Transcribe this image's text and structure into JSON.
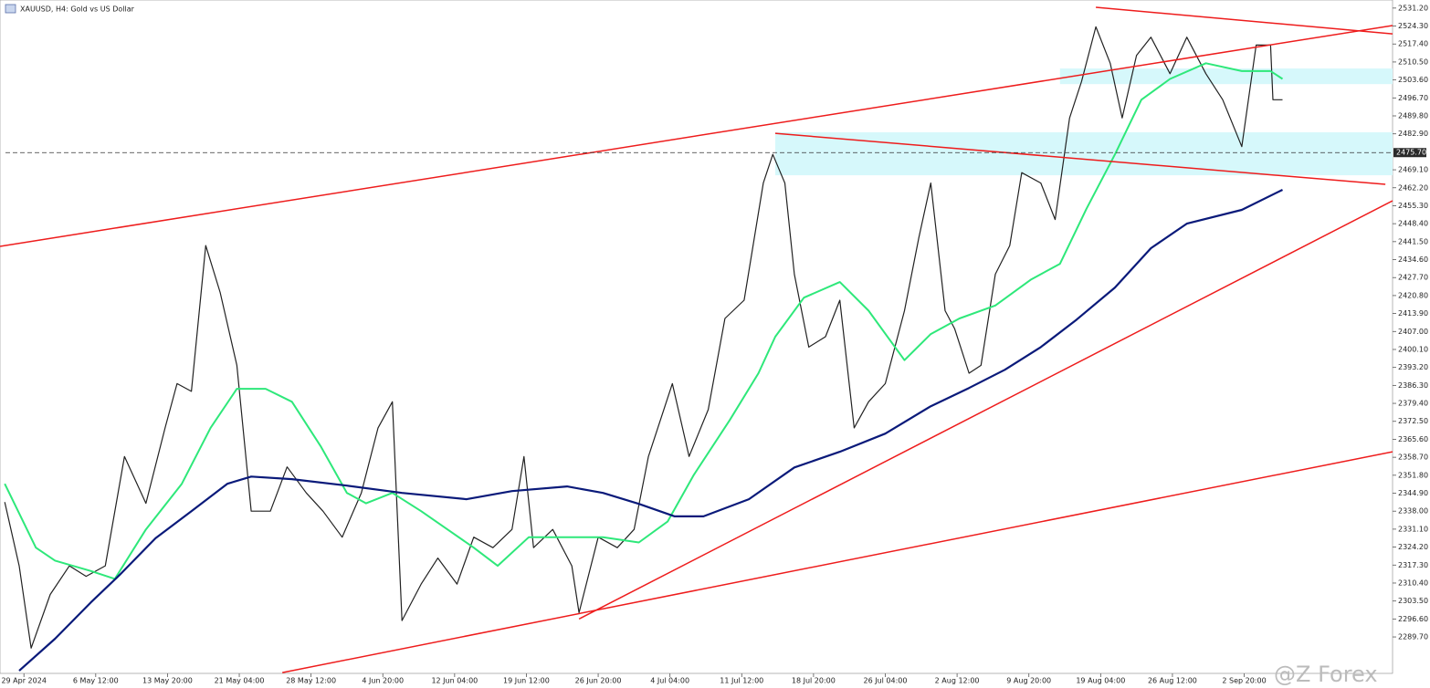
{
  "chart_data": {
    "type": "line",
    "title": "XAUUSD, H4:  Gold vs US Dollar",
    "watermark": "@Z Forex",
    "xlim": [
      0,
      582
    ],
    "ylim": [
      2275.7,
      2534.3
    ],
    "yticks": [
      {
        "value": 2531.2,
        "label": "2531.20"
      },
      {
        "value": 2524.3,
        "label": "2524.30"
      },
      {
        "value": 2517.4,
        "label": "2517.40"
      },
      {
        "value": 2510.5,
        "label": "2510.50"
      },
      {
        "value": 2503.6,
        "label": "2503.60"
      },
      {
        "value": 2496.7,
        "label": "2496.70"
      },
      {
        "value": 2489.8,
        "label": "2489.80"
      },
      {
        "value": 2482.9,
        "label": "2482.90"
      },
      {
        "value": 2469.1,
        "label": "2469.10"
      },
      {
        "value": 2462.2,
        "label": "2462.20"
      },
      {
        "value": 2455.3,
        "label": "2455.30"
      },
      {
        "value": 2448.4,
        "label": "2448.40"
      },
      {
        "value": 2441.5,
        "label": "2441.50"
      },
      {
        "value": 2434.6,
        "label": "2434.60"
      },
      {
        "value": 2427.7,
        "label": "2427.70"
      },
      {
        "value": 2420.8,
        "label": "2420.80"
      },
      {
        "value": 2413.9,
        "label": "2413.90"
      },
      {
        "value": 2407,
        "label": "2407.00"
      },
      {
        "value": 2400.1,
        "label": "2400.10"
      },
      {
        "value": 2393.2,
        "label": "2393.20"
      },
      {
        "value": 2386.3,
        "label": "2386.30"
      },
      {
        "value": 2379.4,
        "label": "2379.40"
      },
      {
        "value": 2372.5,
        "label": "2372.50"
      },
      {
        "value": 2365.6,
        "label": "2365.60"
      },
      {
        "value": 2358.7,
        "label": "2358.70"
      },
      {
        "value": 2351.8,
        "label": "2351.80"
      },
      {
        "value": 2344.9,
        "label": "2344.90"
      },
      {
        "value": 2338,
        "label": "2338.00"
      },
      {
        "value": 2331.1,
        "label": "2331.10"
      },
      {
        "value": 2324.2,
        "label": "2324.20"
      },
      {
        "value": 2317.3,
        "label": "2317.30"
      },
      {
        "value": 2310.4,
        "label": "2310.40"
      },
      {
        "value": 2303.5,
        "label": "2303.50"
      },
      {
        "value": 2296.6,
        "label": "2296.60"
      },
      {
        "value": 2289.7,
        "label": "2289.70"
      }
    ],
    "xticks": [
      {
        "value": 10,
        "label": "29 Apr 2024"
      },
      {
        "value": 40,
        "label": "6 May 12:00"
      },
      {
        "value": 70,
        "label": "13 May 20:00"
      },
      {
        "value": 100,
        "label": "21 May 04:00"
      },
      {
        "value": 130,
        "label": "28 May 12:00"
      },
      {
        "value": 160,
        "label": "4 Jun 20:00"
      },
      {
        "value": 190,
        "label": "12 Jun 04:00"
      },
      {
        "value": 220,
        "label": "19 Jun 12:00"
      },
      {
        "value": 250,
        "label": "26 Jun 20:00"
      },
      {
        "value": 280,
        "label": "4 Jul 04:00"
      },
      {
        "value": 310,
        "label": "11 Jul 12:00"
      },
      {
        "value": 340,
        "label": "18 Jul 20:00"
      },
      {
        "value": 370,
        "label": "26 Jul 04:00"
      },
      {
        "value": 400,
        "label": "2 Aug 12:00"
      },
      {
        "value": 430,
        "label": "9 Aug 20:00"
      },
      {
        "value": 460,
        "label": "19 Aug 04:00"
      },
      {
        "value": 490,
        "label": "26 Aug 12:00"
      },
      {
        "value": 520,
        "label": "2 Sep 20:00"
      }
    ],
    "price_line": {
      "value": 2475.7,
      "label": "2475.70"
    },
    "series": [
      {
        "color": "#222222",
        "width": 1.2,
        "x": [
          2,
          8,
          13,
          21,
          29,
          36,
          44,
          52,
          61,
          69,
          74,
          80,
          86,
          92,
          99,
          105,
          113,
          120,
          128,
          135,
          143,
          151,
          158,
          164,
          168,
          176,
          183,
          191,
          198,
          206,
          214,
          219,
          223,
          231,
          239,
          242,
          250,
          258,
          265,
          271,
          281,
          288,
          296,
          303,
          311,
          319,
          323,
          328,
          332,
          338,
          345,
          351,
          357,
          363,
          370,
          378,
          384,
          389,
          395,
          399,
          405,
          410,
          416,
          422,
          427,
          435,
          441,
          447,
          452,
          458,
          464,
          469,
          475,
          481,
          489,
          496,
          504,
          511,
          519,
          525,
          531,
          532,
          536
        ],
        "values": [
          2341.5,
          2317,
          2285.4,
          2306,
          2317,
          2313,
          2317,
          2359,
          2341,
          2370,
          2387,
          2384,
          2440,
          2422,
          2394,
          2338,
          2338,
          2355,
          2345,
          2338,
          2328,
          2345,
          2370,
          2380,
          2296,
          2310,
          2320,
          2310,
          2328,
          2324,
          2331,
          2359,
          2324,
          2331,
          2317,
          2299,
          2328,
          2324,
          2331,
          2359,
          2387,
          2359,
          2377,
          2412,
          2419,
          2464,
          2475,
          2464,
          2429,
          2401,
          2405,
          2419,
          2370,
          2380,
          2387,
          2415,
          2443,
          2464,
          2415,
          2408,
          2391,
          2394,
          2429,
          2440,
          2468,
          2464,
          2450,
          2489,
          2503,
          2524,
          2510,
          2489,
          2513,
          2520,
          2506,
          2520,
          2506,
          2496,
          2478,
          2517,
          2517,
          2496,
          2496
        ]
      },
      {
        "color": "#2ee87a",
        "width": 2,
        "x": [
          2,
          15,
          23,
          38,
          48,
          61,
          76,
          88,
          99,
          111,
          122,
          134,
          145,
          153,
          164,
          176,
          187,
          198,
          208,
          221,
          237,
          252,
          267,
          279,
          290,
          305,
          317,
          324,
          336,
          351,
          363,
          378,
          389,
          401,
          416,
          431,
          443,
          454,
          466,
          477,
          489,
          504,
          519,
          531,
          536
        ],
        "values": [
          2348.5,
          2324,
          2319,
          2315,
          2312,
          2331,
          2348.5,
          2370,
          2385,
          2385,
          2380,
          2363,
          2345,
          2341,
          2345,
          2338,
          2331,
          2324,
          2317,
          2328,
          2328,
          2328,
          2326,
          2334,
          2352,
          2373,
          2391,
          2405,
          2420,
          2426,
          2415,
          2396,
          2406,
          2412,
          2417,
          2427,
          2433,
          2454,
          2475,
          2496,
          2504,
          2510,
          2507,
          2507,
          2504
        ]
      },
      {
        "color": "#0a1a7a",
        "width": 2.2,
        "x": [
          8,
          23,
          38,
          50,
          65,
          80,
          95,
          105,
          122,
          145,
          168,
          195,
          214,
          237,
          252,
          267,
          282,
          294,
          313,
          332,
          351,
          370,
          389,
          405,
          420,
          435,
          450,
          466,
          481,
          496,
          519,
          536
        ],
        "values": [
          2276.7,
          2289,
          2303,
          2313.5,
          2327.6,
          2338,
          2348.5,
          2351.3,
          2350.3,
          2347.8,
          2345,
          2342.6,
          2345.7,
          2347.5,
          2345,
          2340.8,
          2336,
          2336,
          2342.6,
          2354.8,
          2360.8,
          2367.8,
          2378.3,
          2385.3,
          2392.3,
          2401,
          2411.6,
          2423.9,
          2439,
          2448.4,
          2453.7,
          2461.4
        ]
      }
    ],
    "trendlines": [
      {
        "color": "#ee1c1c",
        "x": [
          0,
          582
        ],
        "y": [
          2439.7,
          2524.5
        ]
      },
      {
        "color": "#ee1c1c",
        "x": [
          458,
          582
        ],
        "y": [
          2531.5,
          2521.3
        ]
      },
      {
        "color": "#ee1c1c",
        "x": [
          324,
          579
        ],
        "y": [
          2483.1,
          2463.5
        ]
      },
      {
        "color": "#ee1c1c",
        "x": [
          242,
          582
        ],
        "y": [
          2296.6,
          2457.2
        ]
      },
      {
        "color": "#ee1c1c",
        "x": [
          118,
          582
        ],
        "y": [
          2276,
          2360.8
        ]
      }
    ],
    "zones": [
      {
        "color": "#d6f8fb",
        "x": [
          443,
          582
        ],
        "y": [
          2502,
          2508
        ]
      },
      {
        "color": "#d6f8fb",
        "x": [
          324,
          582
        ],
        "y": [
          2467,
          2483.5
        ]
      }
    ]
  }
}
